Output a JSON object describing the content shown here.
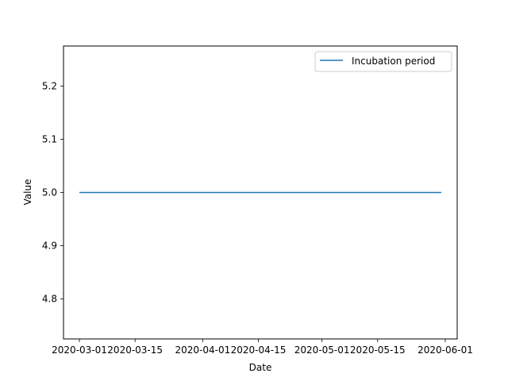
{
  "chart_data": {
    "type": "line",
    "xlabel": "Date",
    "ylabel": "Value",
    "series": [
      {
        "name": "Incubation period",
        "color": "#1f77b4",
        "x": [
          "2020-03-01",
          "2020-05-31"
        ],
        "values": [
          5.0,
          5.0
        ]
      }
    ],
    "x_ticks": [
      "2020-03-01",
      "2020-03-15",
      "2020-04-01",
      "2020-04-15",
      "2020-05-01",
      "2020-05-15",
      "2020-06-01"
    ],
    "y_ticks": [
      "4.8",
      "4.9",
      "5.0",
      "5.1",
      "5.2"
    ],
    "xlim": [
      "2020-02-26",
      "2020-06-04"
    ],
    "ylim": [
      4.725,
      5.275
    ],
    "grid": false,
    "legend_position": "top-right"
  }
}
